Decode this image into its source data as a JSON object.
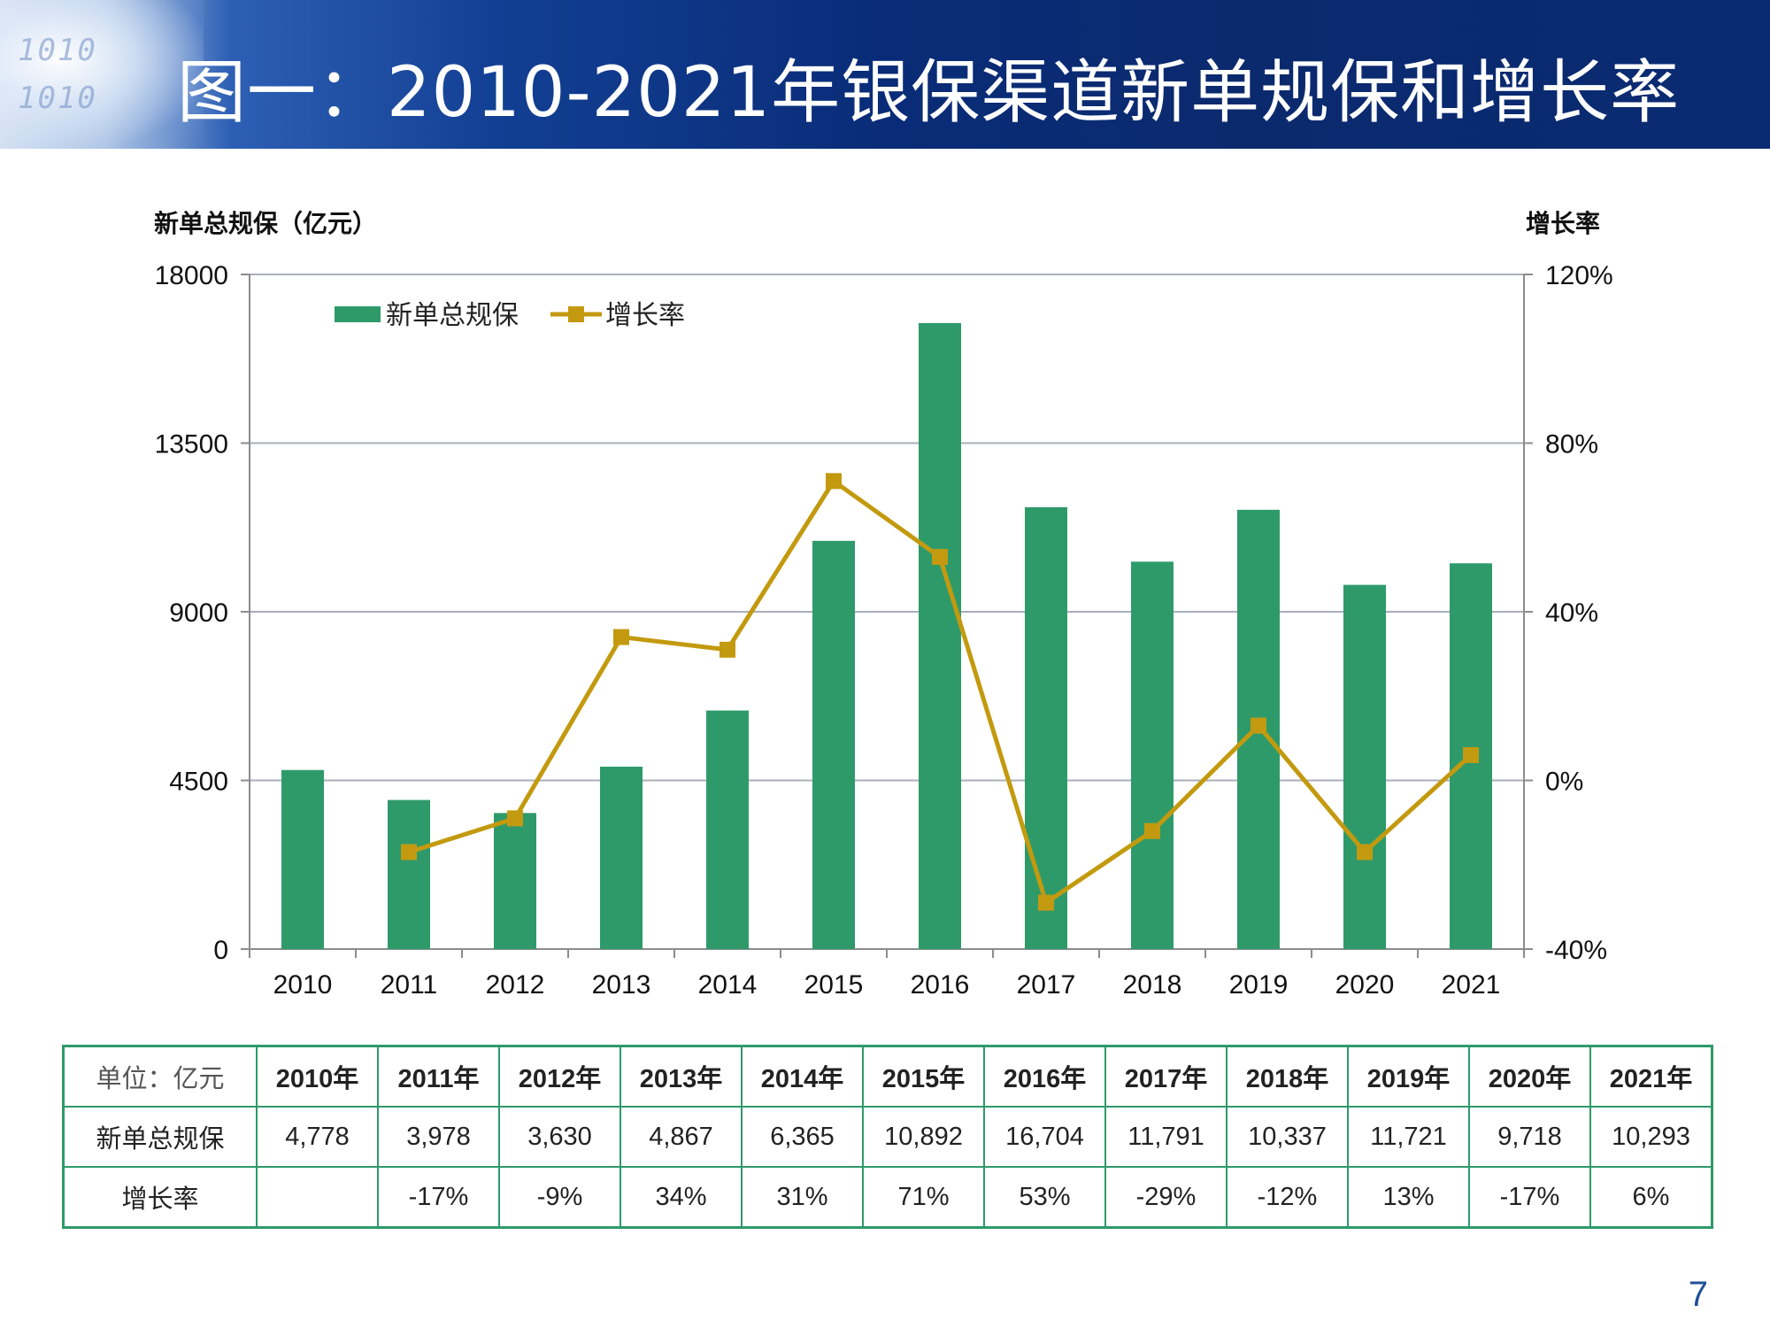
{
  "slide": {
    "title": "图一：2010-2021年银保渠道新单规保和增长率",
    "page_number": "7",
    "header_deco_lines": [
      "1010",
      "1010"
    ]
  },
  "chart_data": {
    "type": "bar+line",
    "title": "",
    "categories": [
      "2010",
      "2011",
      "2012",
      "2013",
      "2014",
      "2015",
      "2016",
      "2017",
      "2018",
      "2019",
      "2020",
      "2021"
    ],
    "series": [
      {
        "name": "新单总规保",
        "type": "bar",
        "axis": "left",
        "color": "#2e9a6a",
        "values": [
          4778,
          3978,
          3630,
          4867,
          6365,
          10892,
          16704,
          11791,
          10337,
          11721,
          9718,
          10293
        ]
      },
      {
        "name": "增长率",
        "type": "line",
        "axis": "right",
        "color": "#c39a0f",
        "values": [
          null,
          -17,
          -9,
          34,
          31,
          71,
          53,
          -29,
          -12,
          13,
          -17,
          6
        ]
      }
    ],
    "left_axis": {
      "label": "新单总规保（亿元）",
      "ylim": [
        0,
        18000
      ],
      "ticks": [
        0,
        4500,
        9000,
        13500,
        18000
      ],
      "tick_labels": [
        "0",
        "4500",
        "9000",
        "13500",
        "18000"
      ]
    },
    "right_axis": {
      "label": "增长率",
      "ylim": [
        -40,
        120
      ],
      "ticks": [
        -40,
        0,
        40,
        80,
        120
      ],
      "tick_labels": [
        "-40%",
        "0%",
        "40%",
        "80%",
        "120%"
      ]
    },
    "grid": true,
    "legend": "top-left"
  },
  "table": {
    "unit_label": "单位：亿元",
    "row_labels": [
      "新单总规保",
      "增长率"
    ],
    "years": [
      "2010年",
      "2011年",
      "2012年",
      "2013年",
      "2014年",
      "2015年",
      "2016年",
      "2017年",
      "2018年",
      "2019年",
      "2020年",
      "2021年"
    ],
    "premium": [
      "4,778",
      "3,978",
      "3,630",
      "4,867",
      "6,365",
      "10,892",
      "16,704",
      "11,791",
      "10,337",
      "11,721",
      "9,718",
      "10,293"
    ],
    "growth": [
      "",
      "-17%",
      "-9%",
      "34%",
      "31%",
      "71%",
      "53%",
      "-29%",
      "-12%",
      "13%",
      "-17%",
      "6%"
    ]
  }
}
